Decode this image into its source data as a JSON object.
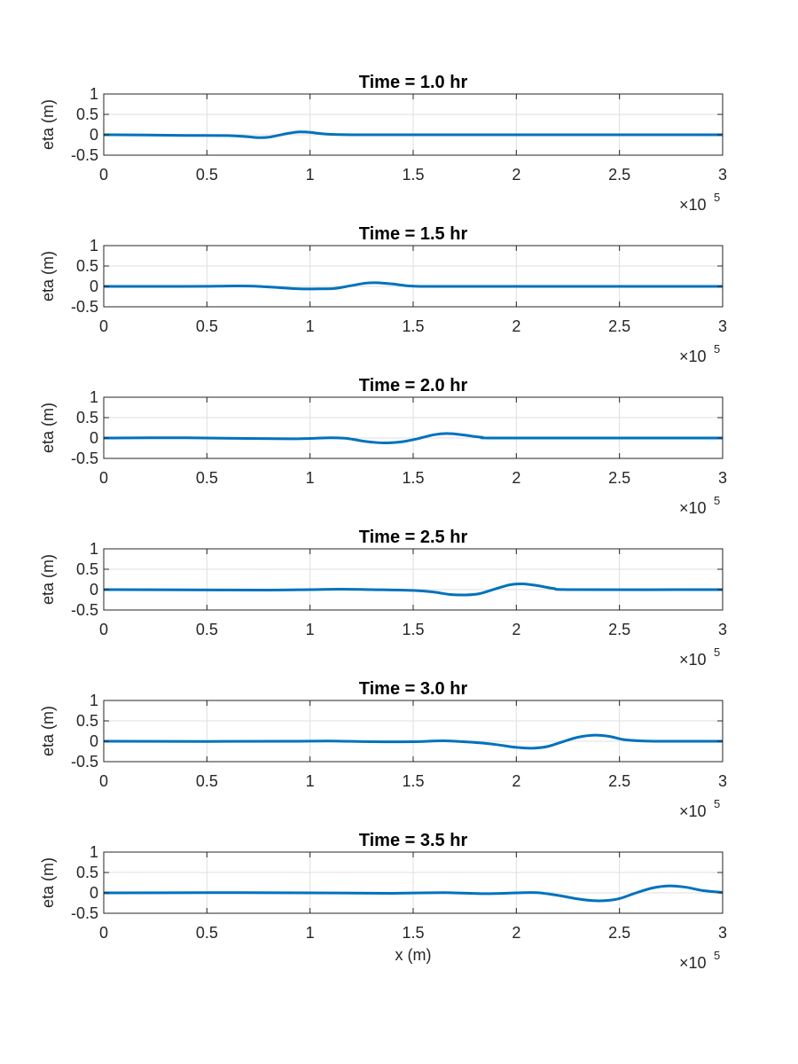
{
  "chart_data": [
    {
      "type": "line",
      "title": "Time = 1.0 hr",
      "xlabel": "",
      "ylabel": "eta (m)",
      "xlim": [
        0,
        300000
      ],
      "ylim": [
        -0.5,
        1
      ],
      "x_ticks": [
        "0",
        "0.5",
        "1",
        "1.5",
        "2",
        "2.5",
        "3"
      ],
      "y_ticks": [
        "-0.5",
        "0",
        "0.5",
        "1"
      ],
      "x_exponent_label": "×10",
      "x_exponent": "5",
      "grid": true,
      "line_color": "#0072BD",
      "series": [
        {
          "x": [
            0,
            20000,
            40000,
            60000,
            70000,
            75000,
            80000,
            85000,
            90000,
            95000,
            100000,
            105000,
            110000,
            120000,
            140000,
            300000
          ],
          "y": [
            0,
            -0.005,
            -0.015,
            -0.02,
            -0.05,
            -0.07,
            -0.06,
            -0.01,
            0.04,
            0.07,
            0.06,
            0.03,
            0.01,
            0,
            0,
            0
          ]
        }
      ]
    },
    {
      "type": "line",
      "title": "Time = 1.5 hr",
      "xlabel": "",
      "ylabel": "eta (m)",
      "xlim": [
        0,
        300000
      ],
      "ylim": [
        -0.5,
        1
      ],
      "x_ticks": [
        "0",
        "0.5",
        "1",
        "1.5",
        "2",
        "2.5",
        "3"
      ],
      "y_ticks": [
        "-0.5",
        "0",
        "0.5",
        "1"
      ],
      "x_exponent_label": "×10",
      "x_exponent": "5",
      "grid": true,
      "line_color": "#0072BD",
      "series": [
        {
          "x": [
            0,
            40000,
            55000,
            65000,
            75000,
            85000,
            95000,
            105000,
            112000,
            120000,
            127000,
            132000,
            140000,
            148000,
            155000,
            170000,
            300000
          ],
          "y": [
            0,
            0,
            0.005,
            0.01,
            0.0,
            -0.03,
            -0.06,
            -0.06,
            -0.05,
            0.02,
            0.08,
            0.09,
            0.06,
            0.01,
            0,
            0,
            0
          ]
        }
      ]
    },
    {
      "type": "line",
      "title": "Time = 2.0 hr",
      "xlabel": "",
      "ylabel": "eta (m)",
      "xlim": [
        0,
        300000
      ],
      "ylim": [
        -0.5,
        1
      ],
      "x_ticks": [
        "0",
        "0.5",
        "1",
        "1.5",
        "2",
        "2.5",
        "3"
      ],
      "y_ticks": [
        "-0.5",
        "0",
        "0.5",
        "1"
      ],
      "x_exponent_label": "×10",
      "x_exponent": "5",
      "grid": true,
      "line_color": "#0072BD",
      "series": [
        {
          "x": [
            0,
            40000,
            70000,
            90000,
            100000,
            110000,
            118000,
            125000,
            132000,
            138000,
            145000,
            152000,
            160000,
            167000,
            175000,
            183000,
            195000,
            300000
          ],
          "y": [
            0,
            0.005,
            -0.01,
            -0.02,
            -0.01,
            0.005,
            -0.01,
            -0.07,
            -0.11,
            -0.12,
            -0.09,
            -0.02,
            0.08,
            0.11,
            0.07,
            0.02,
            0,
            0
          ]
        }
      ]
    },
    {
      "type": "line",
      "title": "Time = 2.5 hr",
      "xlabel": "",
      "ylabel": "eta (m)",
      "xlim": [
        0,
        300000
      ],
      "ylim": [
        -0.5,
        1
      ],
      "x_ticks": [
        "0",
        "0.5",
        "1",
        "1.5",
        "2",
        "2.5",
        "3"
      ],
      "y_ticks": [
        "-0.5",
        "0",
        "0.5",
        "1"
      ],
      "x_exponent_label": "×10",
      "x_exponent": "5",
      "grid": true,
      "line_color": "#0072BD",
      "series": [
        {
          "x": [
            0,
            40000,
            80000,
            100000,
            115000,
            130000,
            150000,
            160000,
            168000,
            175000,
            182000,
            190000,
            197000,
            203000,
            210000,
            218000,
            228000,
            300000
          ],
          "y": [
            0,
            -0.005,
            -0.01,
            0,
            0.01,
            0,
            -0.02,
            -0.06,
            -0.12,
            -0.13,
            -0.1,
            0.02,
            0.12,
            0.14,
            0.1,
            0.03,
            0,
            0
          ]
        }
      ]
    },
    {
      "type": "line",
      "title": "Time = 3.0 hr",
      "xlabel": "",
      "ylabel": "eta (m)",
      "xlim": [
        0,
        300000
      ],
      "ylim": [
        -0.5,
        1
      ],
      "x_ticks": [
        "0",
        "0.5",
        "1",
        "1.5",
        "2",
        "2.5",
        "3"
      ],
      "y_ticks": [
        "-0.5",
        "0",
        "0.5",
        "1"
      ],
      "x_exponent_label": "×10",
      "x_exponent": "5",
      "grid": true,
      "line_color": "#0072BD",
      "series": [
        {
          "x": [
            0,
            50000,
            90000,
            110000,
            130000,
            150000,
            165000,
            180000,
            190000,
            200000,
            208000,
            215000,
            222000,
            230000,
            238000,
            245000,
            252000,
            260000,
            270000,
            300000
          ],
          "y": [
            0,
            -0.005,
            0,
            0.005,
            -0.01,
            -0.01,
            0.01,
            -0.03,
            -0.08,
            -0.15,
            -0.17,
            -0.13,
            -0.02,
            0.1,
            0.15,
            0.12,
            0.04,
            0.01,
            0,
            0
          ]
        }
      ]
    },
    {
      "type": "line",
      "title": "Time = 3.5 hr",
      "xlabel": "x (m)",
      "ylabel": "eta (m)",
      "xlim": [
        0,
        300000
      ],
      "ylim": [
        -0.5,
        1
      ],
      "x_ticks": [
        "0",
        "0.5",
        "1",
        "1.5",
        "2",
        "2.5",
        "3"
      ],
      "y_ticks": [
        "-0.5",
        "0",
        "0.5",
        "1"
      ],
      "x_exponent_label": "×10",
      "x_exponent": "5",
      "grid": true,
      "line_color": "#0072BD",
      "series": [
        {
          "x": [
            0,
            50000,
            100000,
            140000,
            165000,
            185000,
            200000,
            210000,
            220000,
            230000,
            237000,
            243000,
            250000,
            258000,
            266000,
            274000,
            282000,
            290000,
            300000
          ],
          "y": [
            0,
            0.005,
            0,
            -0.01,
            0.005,
            -0.02,
            0,
            0.005,
            -0.06,
            -0.15,
            -0.19,
            -0.19,
            -0.14,
            0.0,
            0.12,
            0.17,
            0.14,
            0.06,
            0.01
          ]
        }
      ]
    }
  ]
}
